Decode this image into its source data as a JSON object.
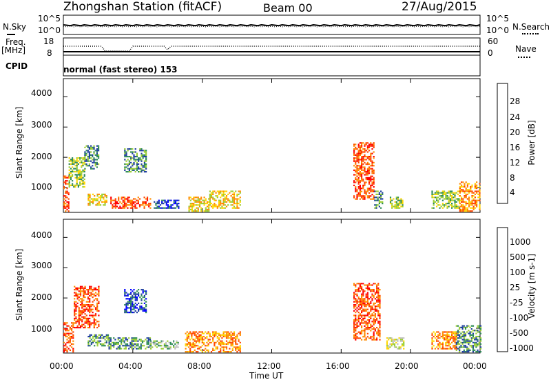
{
  "header": {
    "station": "Zhongshan Station (fitACF)",
    "beam": "Beam 00",
    "date": "27/Aug/2015"
  },
  "top_panels": {
    "sky_label": "N.Sky",
    "search_label": "N.Search",
    "sky_ticks": [
      "10^5",
      "10^0"
    ],
    "search_ticks": [
      "10^5",
      "10^0"
    ],
    "freq_label": "Freq.",
    "freq_unit": "[MHz]",
    "freq_ticks": [
      "18",
      "8"
    ],
    "nave_label": "Nave",
    "nave_ticks": [
      "60",
      "0"
    ],
    "cpid_label": "CPID",
    "cpid_text": "normal (fast stereo) 153"
  },
  "chart_data": [
    {
      "type": "heatmap",
      "name": "power",
      "ylabel": "Slant Range [km]",
      "ylim": [
        180,
        4600
      ],
      "yticks": [
        "1000",
        "2000",
        "3000",
        "4000"
      ],
      "xlim": [
        0,
        24
      ],
      "colorbar_label": "Power [dB]",
      "colorbar_ticks": [
        "4",
        "8",
        "12",
        "16",
        "20",
        "24",
        "28"
      ],
      "colors": [
        "#0000ff",
        "#1f3fa0",
        "#2e8b57",
        "#9acd32",
        "#ffd700",
        "#ff8c00",
        "#ff4500",
        "#ff0000"
      ],
      "regions": [
        {
          "t0": 0.0,
          "t1": 0.3,
          "r0": 200,
          "r1": 1400,
          "level": 6
        },
        {
          "t0": 0.3,
          "t1": 1.2,
          "r0": 1000,
          "r1": 2000,
          "level": 3
        },
        {
          "t0": 1.2,
          "t1": 2.0,
          "r0": 1600,
          "r1": 2400,
          "level": 2
        },
        {
          "t0": 1.4,
          "t1": 2.5,
          "r0": 400,
          "r1": 800,
          "level": 4
        },
        {
          "t0": 2.7,
          "t1": 5.0,
          "r0": 300,
          "r1": 700,
          "level": 6
        },
        {
          "t0": 3.5,
          "t1": 4.8,
          "r0": 1500,
          "r1": 2300,
          "level": 2
        },
        {
          "t0": 5.2,
          "t1": 6.6,
          "r0": 300,
          "r1": 600,
          "level": 1
        },
        {
          "t0": 7.2,
          "t1": 8.4,
          "r0": 200,
          "r1": 700,
          "level": 4
        },
        {
          "t0": 8.4,
          "t1": 10.2,
          "r0": 300,
          "r1": 900,
          "level": 4
        },
        {
          "t0": 16.7,
          "t1": 17.9,
          "r0": 600,
          "r1": 2500,
          "level": 6
        },
        {
          "t0": 17.9,
          "t1": 18.4,
          "r0": 300,
          "r1": 900,
          "level": 2
        },
        {
          "t0": 18.8,
          "t1": 19.5,
          "r0": 300,
          "r1": 700,
          "level": 3
        },
        {
          "t0": 21.2,
          "t1": 22.8,
          "r0": 300,
          "r1": 900,
          "level": 3
        },
        {
          "t0": 22.8,
          "t1": 24.0,
          "r0": 200,
          "r1": 1200,
          "level": 5
        }
      ]
    },
    {
      "type": "heatmap",
      "name": "velocity",
      "ylabel": "Slant Range [km]",
      "ylim": [
        180,
        4600
      ],
      "yticks": [
        "1000",
        "2000",
        "3000",
        "4000"
      ],
      "xlim": [
        0,
        24
      ],
      "colorbar_label": "Velocity [m s-1]",
      "colorbar_ticks": [
        "1000",
        "500",
        "100",
        "25",
        "-25",
        "-100",
        "-500",
        "-1000"
      ],
      "colors": [
        "#ff0000",
        "#ff4500",
        "#ff8c00",
        "#ffd700",
        "#c0c0c0",
        "#9acd32",
        "#2e8b57",
        "#1f3fa0",
        "#0000ff"
      ],
      "regions": [
        {
          "t0": 0.0,
          "t1": 0.6,
          "r0": 200,
          "r1": 1200,
          "level": 1
        },
        {
          "t0": 0.6,
          "t1": 2.0,
          "r0": 1000,
          "r1": 2400,
          "level": 1
        },
        {
          "t0": 1.4,
          "t1": 2.6,
          "r0": 400,
          "r1": 800,
          "level": 6
        },
        {
          "t0": 2.6,
          "t1": 5.0,
          "r0": 300,
          "r1": 700,
          "level": 6
        },
        {
          "t0": 3.5,
          "t1": 4.8,
          "r0": 1500,
          "r1": 2300,
          "level": 7
        },
        {
          "t0": 5.0,
          "t1": 6.6,
          "r0": 300,
          "r1": 600,
          "level": 5
        },
        {
          "t0": 7.0,
          "t1": 10.2,
          "r0": 200,
          "r1": 900,
          "level": 2
        },
        {
          "t0": 16.7,
          "t1": 18.2,
          "r0": 600,
          "r1": 2500,
          "level": 1
        },
        {
          "t0": 18.6,
          "t1": 19.6,
          "r0": 300,
          "r1": 700,
          "level": 4
        },
        {
          "t0": 21.2,
          "t1": 22.6,
          "r0": 300,
          "r1": 900,
          "level": 2
        },
        {
          "t0": 22.6,
          "t1": 24.0,
          "r0": 200,
          "r1": 1100,
          "level": 6
        }
      ]
    }
  ],
  "xaxis": {
    "label": "Time UT",
    "ticks": [
      "00:00",
      "04:00",
      "08:00",
      "12:00",
      "16:00",
      "20:00",
      "00:00"
    ]
  }
}
